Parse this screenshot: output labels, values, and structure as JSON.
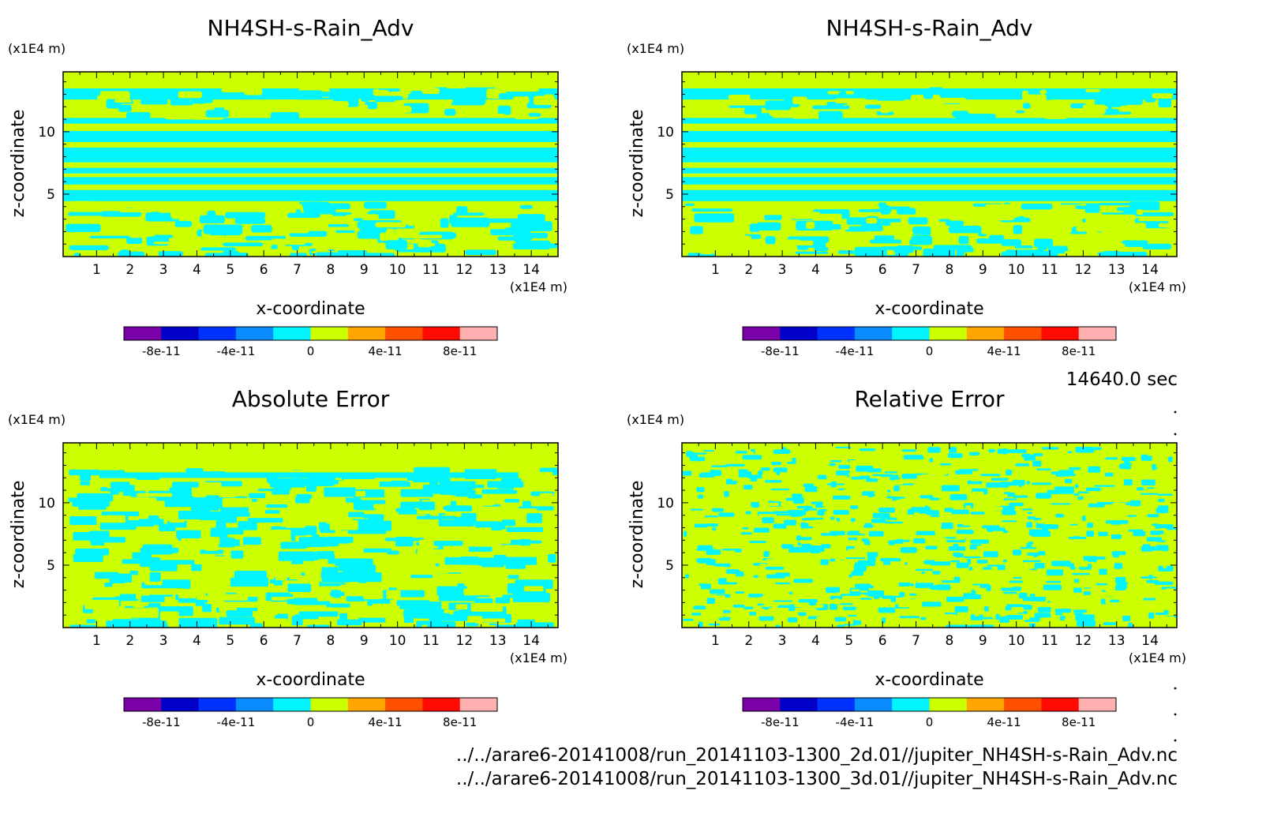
{
  "time_label": "14640.0 sec",
  "files": [
    "../../arare6-20141008/run_20141103-1300_2d.01//jupiter_NH4SH-s-Rain_Adv.nc",
    "../../arare6-20141008/run_20141103-1300_3d.01//jupiter_NH4SH-s-Rain_Adv.nc"
  ],
  "colors": {
    "levels": [
      "#7a00a8",
      "#0000c8",
      "#0032ff",
      "#0a8cff",
      "#00f5ff",
      "#ccff00",
      "#ffa500",
      "#ff5000",
      "#ff0a00",
      "#ffb0b0"
    ],
    "field_positive": "#ccff00",
    "field_zero": "#00f5ff"
  },
  "colorbar": {
    "tick_labels": [
      "-8e-11",
      "-4e-11",
      "0",
      "4e-11",
      "8e-11"
    ],
    "tick_values": [
      -8e-11,
      -4e-11,
      0,
      4e-11,
      8e-11
    ],
    "range": [
      -1e-10,
      1e-10
    ]
  },
  "chart_data": [
    {
      "type": "heatmap",
      "title": "NH4SH-s-Rain_Adv",
      "xlabel": "x-coordinate",
      "ylabel": "z-coordinate",
      "xunit": "(x1E4 m)",
      "yunit": "(x1E4 m)",
      "xlim": [
        0,
        14.8
      ],
      "ylim": [
        0,
        14.8
      ],
      "xticks": [
        1,
        2,
        3,
        4,
        5,
        6,
        7,
        8,
        9,
        10,
        11,
        12,
        13,
        14
      ],
      "yticks": [
        5,
        10
      ],
      "pattern": "layered"
    },
    {
      "type": "heatmap",
      "title": "NH4SH-s-Rain_Adv",
      "xlabel": "x-coordinate",
      "ylabel": "z-coordinate",
      "xunit": "(x1E4 m)",
      "yunit": "(x1E4 m)",
      "xlim": [
        0,
        14.8
      ],
      "ylim": [
        0,
        14.8
      ],
      "xticks": [
        1,
        2,
        3,
        4,
        5,
        6,
        7,
        8,
        9,
        10,
        11,
        12,
        13,
        14
      ],
      "yticks": [
        5,
        10
      ],
      "pattern": "layered"
    },
    {
      "type": "heatmap",
      "title": "Absolute Error",
      "xlabel": "x-coordinate",
      "ylabel": "z-coordinate",
      "xunit": "(x1E4 m)",
      "yunit": "(x1E4 m)",
      "xlim": [
        0,
        14.8
      ],
      "ylim": [
        0,
        14.8
      ],
      "xticks": [
        1,
        2,
        3,
        4,
        5,
        6,
        7,
        8,
        9,
        10,
        11,
        12,
        13,
        14
      ],
      "yticks": [
        5,
        10
      ],
      "pattern": "blotchy"
    },
    {
      "type": "heatmap",
      "title": "Relative Error",
      "xlabel": "x-coordinate",
      "ylabel": "z-coordinate",
      "xunit": "(x1E4 m)",
      "yunit": "(x1E4 m)",
      "xlim": [
        0,
        14.8
      ],
      "ylim": [
        0,
        14.8
      ],
      "xticks": [
        1,
        2,
        3,
        4,
        5,
        6,
        7,
        8,
        9,
        10,
        11,
        12,
        13,
        14
      ],
      "yticks": [
        5,
        10
      ],
      "pattern": "noisy"
    }
  ]
}
